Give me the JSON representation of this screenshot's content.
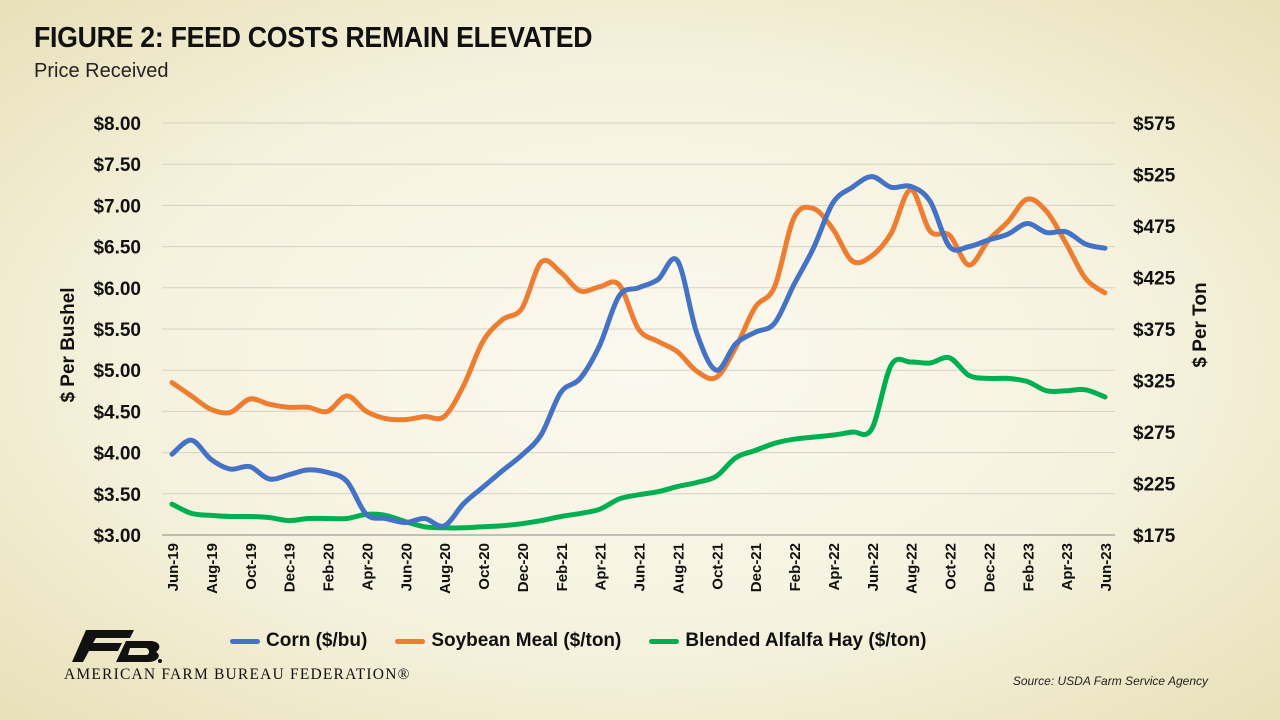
{
  "header": {
    "title": "FIGURE 2: FEED COSTS REMAIN ELEVATED",
    "subtitle": "Price Received"
  },
  "branding": {
    "org_name": "AMERICAN FARM BUREAU FEDERATION®",
    "logo_icon": "fb-logo-icon"
  },
  "footer": {
    "source": "Source: USDA Farm Service Agency"
  },
  "chart_data": {
    "type": "line",
    "title": "FIGURE 2: FEED COSTS REMAIN ELEVATED",
    "subtitle": "Price Received",
    "ylabel": "$ Per Bushel",
    "y2label": "$ Per Ton",
    "ylim": [
      3.0,
      8.0
    ],
    "y2lim": [
      175,
      575
    ],
    "y_ticks": [
      "$3.00",
      "$3.50",
      "$4.00",
      "$4.50",
      "$5.00",
      "$5.50",
      "$6.00",
      "$6.50",
      "$7.00",
      "$7.50",
      "$8.00"
    ],
    "y2_ticks": [
      "$175",
      "$225",
      "$275",
      "$325",
      "$375",
      "$425",
      "$475",
      "$525",
      "$575"
    ],
    "x": [
      "Jun-19",
      "Jul-19",
      "Aug-19",
      "Sep-19",
      "Oct-19",
      "Nov-19",
      "Dec-19",
      "Jan-20",
      "Feb-20",
      "Mar-20",
      "Apr-20",
      "May-20",
      "Jun-20",
      "Jul-20",
      "Aug-20",
      "Sep-20",
      "Oct-20",
      "Nov-20",
      "Dec-20",
      "Jan-21",
      "Feb-21",
      "Mar-21",
      "Apr-21",
      "May-21",
      "Jun-21",
      "Jul-21",
      "Aug-21",
      "Sep-21",
      "Oct-21",
      "Nov-21",
      "Dec-21",
      "Jan-22",
      "Feb-22",
      "Mar-22",
      "Apr-22",
      "May-22",
      "Jun-22",
      "Jul-22",
      "Aug-22",
      "Sep-22",
      "Oct-22",
      "Nov-22",
      "Dec-22",
      "Jan-23",
      "Feb-23",
      "Mar-23",
      "Apr-23",
      "May-23",
      "Jun-23"
    ],
    "x_tick_labels": [
      "Jun-19",
      "Aug-19",
      "Oct-19",
      "Dec-19",
      "Feb-20",
      "Apr-20",
      "Jun-20",
      "Aug-20",
      "Oct-20",
      "Dec-20",
      "Feb-21",
      "Apr-21",
      "Jun-21",
      "Aug-21",
      "Oct-21",
      "Dec-21",
      "Feb-22",
      "Apr-22",
      "Jun-22",
      "Aug-22",
      "Oct-22",
      "Dec-22",
      "Feb-23",
      "Apr-23",
      "Jun-23"
    ],
    "grid": true,
    "legend_position": "bottom",
    "series": [
      {
        "name": "Corn ($/bu)",
        "axis": "left",
        "color": "#4472c4",
        "values": [
          3.98,
          4.15,
          3.92,
          3.8,
          3.83,
          3.68,
          3.73,
          3.79,
          3.76,
          3.65,
          3.25,
          3.2,
          3.15,
          3.2,
          3.11,
          3.38,
          3.58,
          3.78,
          3.97,
          4.22,
          4.73,
          4.9,
          5.3,
          5.9,
          6.0,
          6.1,
          6.33,
          5.45,
          5.0,
          5.32,
          5.46,
          5.57,
          6.04,
          6.48,
          7.03,
          7.22,
          7.35,
          7.22,
          7.23,
          7.05,
          6.5,
          6.5,
          6.58,
          6.65,
          6.78,
          6.67,
          6.68,
          6.53,
          6.48
        ]
      },
      {
        "name": "Soybean Meal ($/ton)",
        "axis": "right",
        "color": "#ed7d31",
        "values": [
          323,
          310,
          297,
          294,
          307,
          302,
          299,
          299,
          295,
          310,
          295,
          288,
          287,
          290,
          290,
          320,
          363,
          384,
          395,
          440,
          430,
          412,
          416,
          418,
          375,
          363,
          353,
          334,
          328,
          357,
          396,
          416,
          483,
          492,
          472,
          441,
          446,
          468,
          510,
          470,
          466,
          437,
          461,
          479,
          501,
          489,
          458,
          424,
          410
        ]
      },
      {
        "name": "Blended Alfalfa Hay ($/ton)",
        "axis": "right",
        "color": "#00b050",
        "values": [
          205,
          196,
          194,
          193,
          193,
          192,
          189,
          191,
          191,
          191,
          195,
          194,
          188,
          183,
          182,
          182,
          183,
          184,
          186,
          189,
          193,
          196,
          200,
          210,
          214,
          217,
          222,
          226,
          232,
          250,
          257,
          264,
          268,
          270,
          272,
          275,
          278,
          340,
          343,
          342,
          347,
          330,
          327,
          327,
          324,
          315,
          315,
          316,
          309
        ]
      }
    ]
  }
}
